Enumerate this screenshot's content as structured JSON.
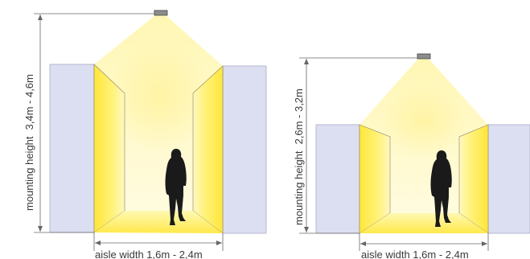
{
  "diagrams": [
    {
      "mounting_height_label": "mounting height",
      "mounting_height_value": "3,4m - 4,6m",
      "aisle_width_label": "aisle width 1,6m - 2,4m"
    },
    {
      "mounting_height_label": "mounting height",
      "mounting_height_value": "2,6m - 3,2m",
      "aisle_width_label": "aisle width 1,6m - 2,4m"
    }
  ],
  "colors": {
    "shelf": "#dcdff2",
    "shelf_stroke": "#a9abc4",
    "light": "#fff27a",
    "dimension_line": "#666666",
    "person": "#1a1a1a"
  }
}
